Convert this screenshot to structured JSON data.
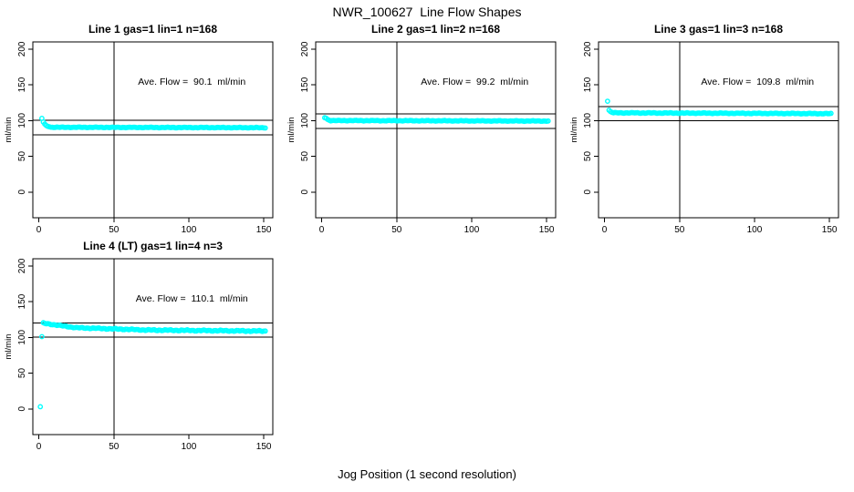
{
  "figure": {
    "title": "NWR_100627  Line Flow Shapes",
    "xlabel": "Jog Position (1 second resolution)",
    "background_color": "#FFFFFF",
    "line_color": "#000000",
    "point_color": "#00FFFF"
  },
  "chart_data": {
    "type": "scatter",
    "layout": "2 rows x 3 cols; panels 1-3 in top row, panel 4 in bottom-left, bottom-middle and bottom-right empty",
    "title": "NWR_100627  Line Flow Shapes",
    "xlabel": "Jog Position (1 second resolution)",
    "shared_axes": {
      "ylabel": "ml/min",
      "x_ticks": [
        0,
        50,
        100,
        150
      ],
      "y_ticks": [
        0,
        50,
        100,
        150,
        200
      ],
      "xlim": [
        -4,
        156
      ],
      "ylim": [
        -36,
        210
      ],
      "vline_x": 50,
      "grid": false,
      "marker": "open-circle",
      "marker_color": "#00FFFF"
    },
    "annotation_anchor": {
      "x": 102,
      "y": 154
    },
    "panels": [
      {
        "title": "Line 1 gas=1 lin=1 n=168",
        "annotation": "Ave. Flow =  90.1  ml/min",
        "ave_flow_ml_min": 90.1,
        "n": 168,
        "ref_line_upper": 100.1,
        "ref_line_lower": 80.1,
        "points_initial": [
          [
            2,
            103
          ],
          [
            3,
            98
          ],
          [
            4,
            95
          ],
          [
            5,
            93
          ],
          [
            6,
            91.8
          ],
          [
            7,
            91.2
          ]
        ],
        "tail_segments": [
          {
            "x_from": 8,
            "x_to": 151,
            "y_from": 90.6,
            "y_to": 90.0,
            "jitter": 0.5
          }
        ]
      },
      {
        "title": "Line 2 gas=1 lin=2 n=168",
        "annotation": "Ave. Flow =  99.2  ml/min",
        "ave_flow_ml_min": 99.2,
        "n": 168,
        "ref_line_upper": 109.2,
        "ref_line_lower": 89.2,
        "points_initial": [
          [
            2,
            104
          ],
          [
            3,
            103.2
          ],
          [
            4,
            101.5
          ],
          [
            5,
            100.5
          ]
        ],
        "tail_segments": [
          {
            "x_from": 6,
            "x_to": 151,
            "y_from": 100.0,
            "y_to": 99.3,
            "jitter": 0.5
          }
        ]
      },
      {
        "title": "Line 3 gas=1 lin=3 n=168",
        "annotation": "Ave. Flow =  109.8  ml/min",
        "ave_flow_ml_min": 109.8,
        "n": 168,
        "ref_line_upper": 119.8,
        "ref_line_lower": 99.8,
        "points_initial": [
          [
            2,
            127
          ],
          [
            3,
            114.5
          ],
          [
            4,
            112.5
          ],
          [
            5,
            111.5
          ]
        ],
        "tail_segments": [
          {
            "x_from": 6,
            "x_to": 151,
            "y_from": 110.8,
            "y_to": 109.6,
            "jitter": 0.6
          }
        ]
      },
      {
        "title": "Line 4 (LT) gas=1 lin=4 n=3",
        "annotation": "Ave. Flow =  110.1  ml/min",
        "ave_flow_ml_min": 110.1,
        "n": 3,
        "ref_line_upper": 120.1,
        "ref_line_lower": 100.1,
        "points_initial": [
          [
            1,
            3
          ],
          [
            2,
            101
          ],
          [
            3,
            120.5
          ]
        ],
        "tail_segments": [
          {
            "x_from": 4,
            "x_to": 25,
            "y_from": 119.5,
            "y_to": 113.5,
            "jitter": 0.7
          },
          {
            "x_from": 26,
            "x_to": 70,
            "y_from": 113.5,
            "y_to": 110.5,
            "jitter": 0.8
          },
          {
            "x_from": 71,
            "x_to": 151,
            "y_from": 110.3,
            "y_to": 108.8,
            "jitter": 0.9
          }
        ]
      }
    ]
  }
}
